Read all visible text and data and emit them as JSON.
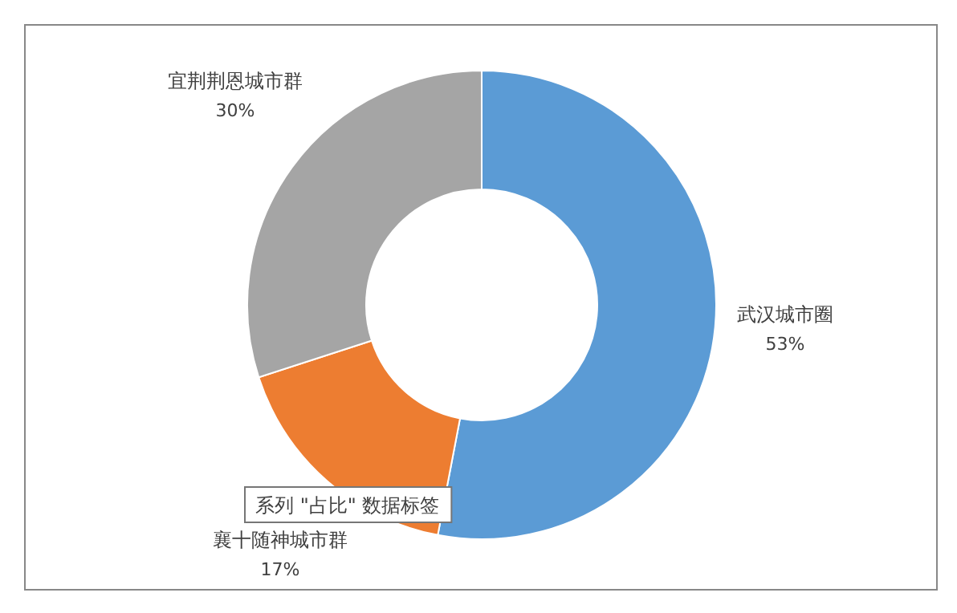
{
  "chart_data": {
    "type": "donut",
    "categories": [
      "武汉城市圈",
      "襄十随神城市群",
      "宜荆荆恩城市群"
    ],
    "values": [
      53,
      17,
      30
    ],
    "value_labels": [
      "53%",
      "17%",
      "30%"
    ],
    "colors": [
      "#5b9bd5",
      "#ed7d31",
      "#a5a5a5"
    ],
    "annotations": [
      "系列 \"占比\" 数据标签"
    ]
  }
}
